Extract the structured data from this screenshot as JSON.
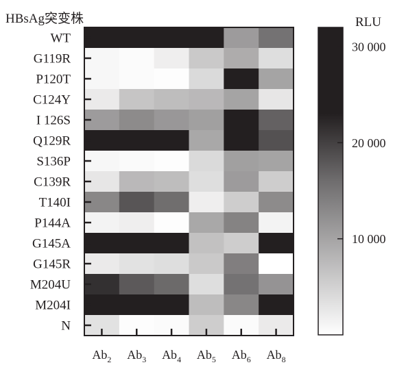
{
  "chart_data": {
    "type": "heatmap",
    "title": "HBsAg突变株",
    "rows": [
      "WT",
      "G119R",
      "P120T",
      "C124Y",
      "I 126S",
      "Q129R",
      "S136P",
      "C139R",
      "T140I",
      "P144A",
      "G145A",
      "G145R",
      "M204U",
      "M204I",
      "N"
    ],
    "columns": [
      {
        "base": "Ab",
        "sub": "2"
      },
      {
        "base": "Ab",
        "sub": "3"
      },
      {
        "base": "Ab",
        "sub": "4"
      },
      {
        "base": "Ab",
        "sub": "5"
      },
      {
        "base": "Ab",
        "sub": "6"
      },
      {
        "base": "Ab",
        "sub": "8"
      }
    ],
    "values": [
      [
        30000,
        30000,
        30000,
        30000,
        12000,
        17000
      ],
      [
        1000,
        500,
        2000,
        6500,
        10000,
        4000
      ],
      [
        1000,
        500,
        200,
        4500,
        30000,
        11000
      ],
      [
        2500,
        7000,
        8000,
        8500,
        11000,
        3000
      ],
      [
        12000,
        14000,
        12500,
        11500,
        30000,
        19000
      ],
      [
        30000,
        30000,
        30000,
        10500,
        30000,
        21000
      ],
      [
        1000,
        600,
        300,
        4500,
        11500,
        11000
      ],
      [
        3000,
        8500,
        8000,
        4000,
        12000,
        6000
      ],
      [
        14500,
        20500,
        17500,
        2000,
        6000,
        14000
      ],
      [
        1500,
        2000,
        300,
        10500,
        15000,
        1500
      ],
      [
        30000,
        30000,
        30000,
        7500,
        6000,
        30000
      ],
      [
        2500,
        3500,
        4000,
        6500,
        15500,
        0
      ],
      [
        25000,
        20000,
        18000,
        4000,
        17000,
        13000
      ],
      [
        30000,
        30000,
        30000,
        8000,
        14500,
        30000
      ],
      [
        3500,
        300,
        500,
        6000,
        500,
        2500
      ]
    ],
    "colorbar": {
      "label": "RLU",
      "min": 0,
      "max": 32000,
      "ticks": [
        10000,
        20000,
        30000
      ],
      "tick_labels": [
        "10 000",
        "20 000",
        "30 000"
      ],
      "colors": [
        "#ffffff",
        "#231f20"
      ]
    },
    "grid": false,
    "legend": "right"
  }
}
